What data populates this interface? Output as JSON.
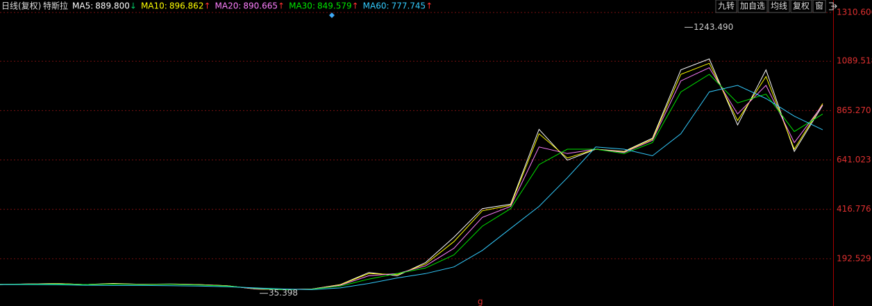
{
  "header": {
    "period": "日线(复权)",
    "stock": "特斯拉"
  },
  "toolbar": [
    "九转",
    "加自选",
    "均线",
    "复权",
    "窗"
  ],
  "chart_data": {
    "type": "line",
    "categories": [
      null,
      null,
      null,
      null,
      null,
      null,
      null,
      null,
      null,
      null,
      null,
      null,
      null,
      null,
      null,
      null,
      null,
      null,
      null,
      null,
      null,
      null,
      null,
      null,
      null,
      null,
      null,
      null,
      null,
      null
    ],
    "ylim": [
      -22.3,
      1367.5
    ],
    "yticks": [
      1310.606,
      1089.518,
      {
        "value": 865.27,
        "label": "865.270"
      },
      641.023,
      416.776,
      192.529
    ],
    "grid": true,
    "series": [
      {
        "name": "MA5",
        "label": "889.800",
        "trend": "↓",
        "color": "#ffffff",
        "values": [
          75,
          78,
          80,
          75,
          80,
          76,
          78,
          75,
          70,
          55,
          52,
          55,
          75,
          130,
          115,
          175,
          290,
          420,
          440,
          780,
          640,
          690,
          680,
          740,
          1050,
          1100,
          800,
          1050,
          680,
          889.8
        ]
      },
      {
        "name": "MA10",
        "label": "896.862",
        "trend": "↑",
        "color": "#ffff00",
        "values": [
          75,
          78,
          80,
          75,
          79,
          76,
          77,
          75,
          70,
          55,
          52,
          55,
          74,
          125,
          120,
          168,
          270,
          410,
          435,
          760,
          650,
          690,
          678,
          735,
          1030,
          1080,
          820,
          1020,
          690,
          896.862
        ]
      },
      {
        "name": "MA20",
        "label": "890.665",
        "trend": "↑",
        "color": "#ff80ff",
        "values": [
          76,
          78,
          79,
          75,
          78,
          76,
          77,
          74,
          69,
          56,
          52,
          55,
          72,
          115,
          125,
          160,
          240,
          380,
          430,
          700,
          670,
          690,
          675,
          730,
          1000,
          1060,
          850,
          980,
          720,
          890.665
        ]
      },
      {
        "name": "MA30",
        "label": "849.579",
        "trend": "↑",
        "color": "#00e600",
        "values": [
          76,
          77,
          78,
          75,
          77,
          75,
          76,
          73,
          68,
          58,
          52,
          54,
          68,
          100,
          125,
          150,
          210,
          340,
          420,
          620,
          690,
          690,
          670,
          720,
          950,
          1030,
          900,
          940,
          770,
          849.579
        ]
      },
      {
        "name": "MA60",
        "label": "777.745",
        "trend": "↑",
        "color": "#33ccff",
        "values": [
          75,
          75,
          74,
          72,
          71,
          71,
          70,
          68,
          65,
          60,
          55,
          52,
          60,
          80,
          105,
          125,
          155,
          230,
          330,
          430,
          560,
          700,
          690,
          660,
          760,
          950,
          980,
          920,
          840,
          777.745
        ]
      }
    ],
    "annotations": [
      {
        "value": 1243.49,
        "label": "1243.490"
      },
      {
        "value": 35.398,
        "label": "35.398"
      }
    ]
  }
}
